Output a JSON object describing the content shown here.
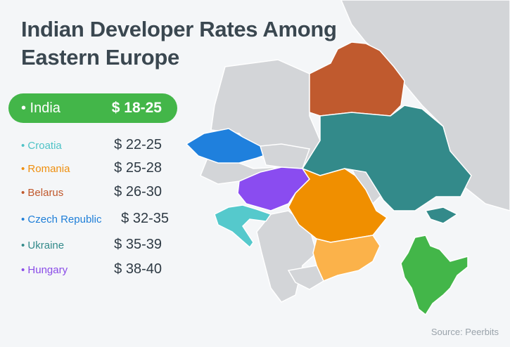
{
  "title": "Indian Developer Rates Among Eastern Europe",
  "highlight": {
    "name": "• India",
    "rate": "$ 18-25",
    "color": "#43b649"
  },
  "rates": [
    {
      "name": "• Croatia",
      "rate": "$ 22-25",
      "color": "#4fc3c7"
    },
    {
      "name": "• Romania",
      "rate": "$ 25-28",
      "color": "#ef8f0e"
    },
    {
      "name": "• Belarus",
      "rate": "$ 26-30",
      "color": "#c0582c"
    },
    {
      "name": "• Czech Republic",
      "rate": "$ 32-35",
      "color": "#1f7fd8"
    },
    {
      "name": "• Ukraine",
      "rate": "$ 35-39",
      "color": "#338a8a"
    },
    {
      "name": "• Hungary",
      "rate": "$ 38-40",
      "color": "#8a4ce8"
    }
  ],
  "source": "Source: Peerbits",
  "map_colors": {
    "neutral": "#d3d5d8",
    "India": "#43b649",
    "Croatia": "#55c9cc",
    "Romania": "#f08f00",
    "Bulgaria": "#fbb24a",
    "Belarus": "#c05a2e",
    "Czech Republic": "#1f80dd",
    "Ukraine": "#338a8a",
    "Hungary": "#8a4cf0"
  }
}
